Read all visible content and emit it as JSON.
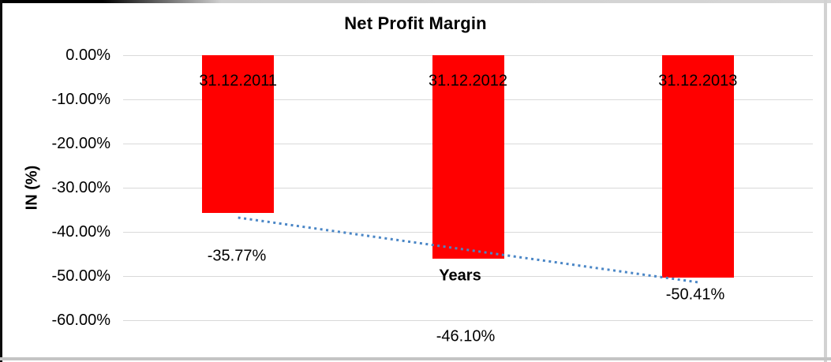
{
  "chart_data": {
    "type": "bar",
    "title": "Net Profit Margin",
    "xlabel": "Years",
    "ylabel": "IN (%)",
    "categories": [
      "31.12.2011",
      "31.12.2012",
      "31.12.2013"
    ],
    "series": [
      {
        "name": "Net Profit Margin",
        "values": [
          -35.77,
          -46.1,
          -50.41
        ]
      }
    ],
    "data_labels": [
      "-35.77%",
      "-46.10%",
      "-50.41%"
    ],
    "yticks": [
      {
        "value": 0,
        "label": "0.00%"
      },
      {
        "value": -10,
        "label": "-10.00%"
      },
      {
        "value": -20,
        "label": "-20.00%"
      },
      {
        "value": -30,
        "label": "-30.00%"
      },
      {
        "value": -40,
        "label": "-40.00%"
      },
      {
        "value": -50,
        "label": "-50.00%"
      },
      {
        "value": -60,
        "label": "-60.00%"
      }
    ],
    "ylim": [
      -70,
      0
    ],
    "grid": true,
    "legend_position": "none",
    "bar_color": "#ff0000",
    "gridline_color": "#d9d9d9",
    "trendline": {
      "type": "linear",
      "style": "dotted",
      "color": "#4a86c6"
    }
  }
}
